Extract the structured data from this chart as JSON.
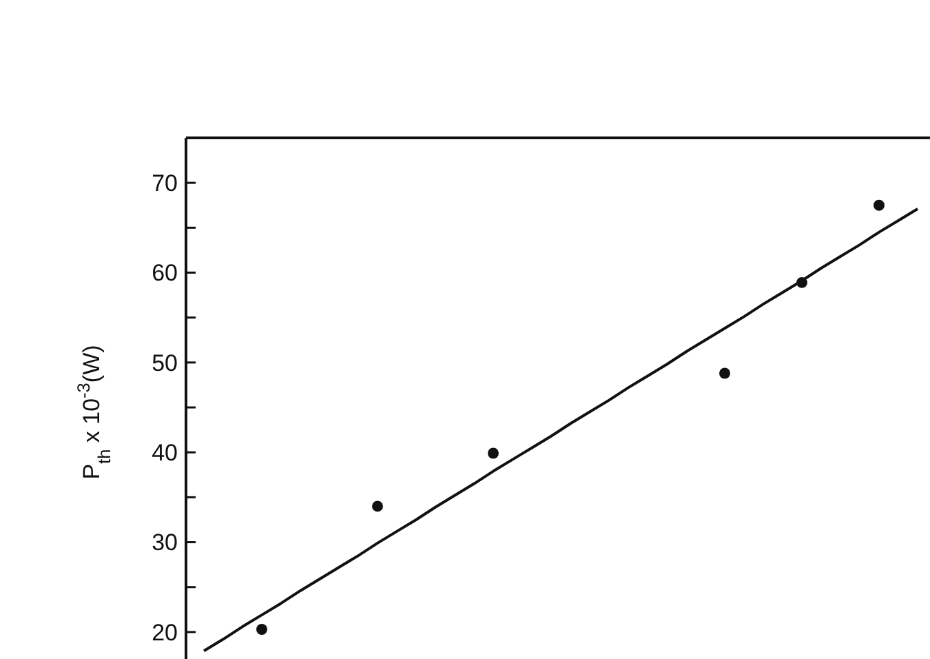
{
  "chart_data": {
    "type": "scatter",
    "ylabel": "P$_{th}$ x 10$^{-3}$(W)",
    "categories": [
      null,
      null,
      null,
      null,
      null,
      null,
      null,
      null,
      null,
      null,
      null,
      null,
      null,
      null,
      null,
      null,
      null,
      null,
      null,
      null,
      null,
      null,
      null,
      null,
      null,
      null,
      null,
      null,
      null,
      null,
      null,
      null,
      null,
      null,
      null,
      null,
      null,
      null
    ],
    "series": [
      {
        "color": "#111111",
        "marker": "circle",
        "values": [
          null,
          null,
          null,
          20.3,
          null,
          null,
          null,
          null,
          null,
          34.0,
          null,
          null,
          null,
          null,
          null,
          39.9,
          null,
          null,
          null,
          null,
          null,
          null,
          null,
          null,
          null,
          null,
          null,
          48.8,
          null,
          null,
          null,
          58.9,
          null,
          null,
          null,
          67.5,
          null,
          null
        ]
      },
      {
        "type": "line",
        "color": "#111111",
        "line_style": "solid",
        "values": [
          17.9,
          19.2,
          20.6,
          21.9,
          23.2,
          24.6,
          25.9,
          27.2,
          28.5,
          29.9,
          31.2,
          32.5,
          33.9,
          35.2,
          36.5,
          37.9,
          39.2,
          40.5,
          41.8,
          43.2,
          44.5,
          45.8,
          47.2,
          48.5,
          49.8,
          51.2,
          52.5,
          53.8,
          55.1,
          56.5,
          57.8,
          59.1,
          60.5,
          61.8,
          63.1,
          64.5,
          65.8,
          67.1
        ]
      }
    ],
    "ylim": [
      17,
      75
    ],
    "yticks": [
      20,
      {
        "value": 25,
        "label": null
      },
      30,
      {
        "value": 35,
        "label": null
      },
      40,
      {
        "value": 45,
        "label": null
      },
      50,
      {
        "value": 55,
        "label": null
      },
      60,
      {
        "value": 65,
        "label": null
      },
      70
    ],
    "tick_labels": "y",
    "grid": false
  }
}
